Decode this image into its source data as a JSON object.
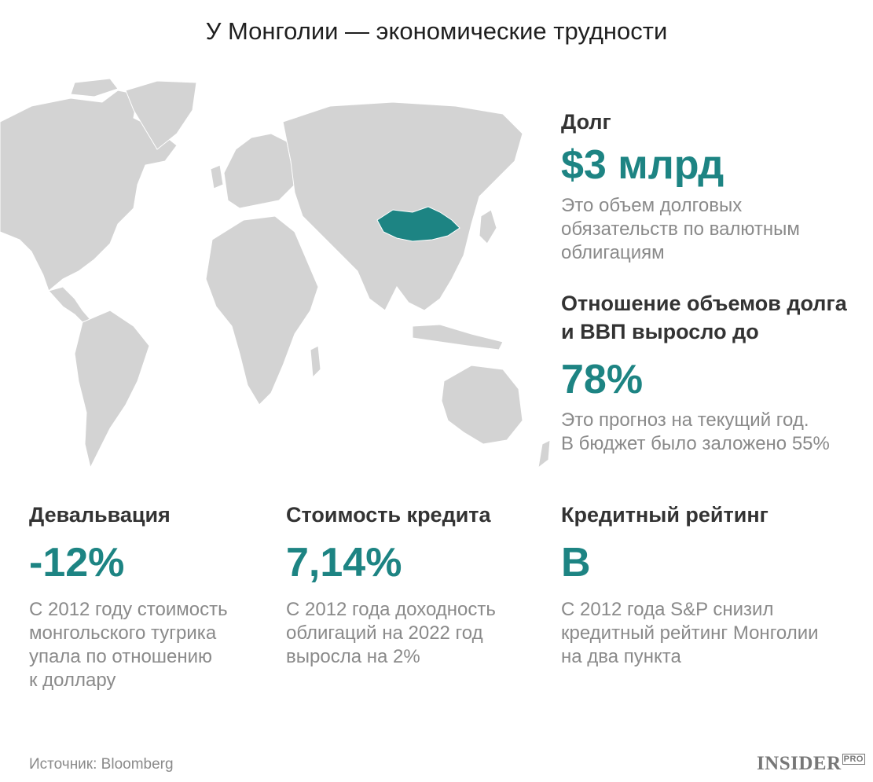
{
  "title": "У Монголии — экономические трудности",
  "colors": {
    "accent": "#1d8483",
    "land": "#d3d3d3",
    "label": "#333333",
    "muted": "#8a8a8a"
  },
  "map": {
    "highlighted_country": "Монголия"
  },
  "stats": {
    "debt": {
      "label": "Долг",
      "value": "$3 млрд",
      "desc": [
        "Это объем долговых",
        "обязательств по валютным",
        "облигациям"
      ]
    },
    "ratio": {
      "label": [
        "Отношение объемов долга",
        "и ВВП выросло до"
      ],
      "value": "78%",
      "desc": [
        "Это прогноз на текущий год.",
        "В бюджет было заложено 55%"
      ]
    },
    "devaluation": {
      "label": "Девальвация",
      "value": "-12%",
      "desc": [
        "С 2012 году стоимость",
        "монгольского тугрика",
        "упала по отношению",
        "к доллару"
      ]
    },
    "credit_cost": {
      "label": "Стоимость кредита",
      "value": "7,14%",
      "desc": [
        "С 2012 года доходность",
        "облигаций на 2022 год",
        "выросла на 2%"
      ]
    },
    "rating": {
      "label": "Кредитный рейтинг",
      "value": "B",
      "desc": [
        "С 2012 года S&P снизил",
        "кредитный рейтинг Монголии",
        "на два пункта"
      ]
    }
  },
  "footer": {
    "source": "Источник: Bloomberg",
    "logo_main": "INSIDER",
    "logo_sup": "PRO"
  }
}
